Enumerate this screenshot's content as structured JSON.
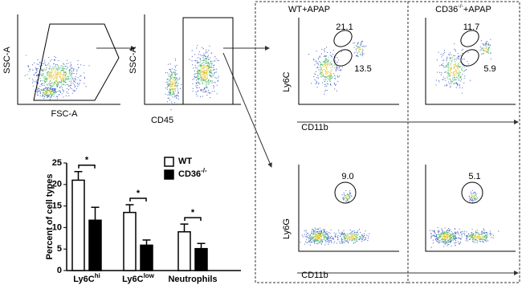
{
  "panels": {
    "gating": [
      {
        "y_label": "SSC-A",
        "x_label": "FSC-A"
      },
      {
        "y_label": "SSC-A",
        "x_label": "CD45"
      }
    ],
    "groups": [
      {
        "label": "WT+APAP"
      },
      {
        "label": "CD36",
        "sup": "-/-",
        "suffix": "+APAP"
      }
    ],
    "rows": [
      {
        "y_label": "Ly6C",
        "x_label": "CD11b",
        "gates": [
          [
            "21.1",
            "13.5"
          ],
          [
            "11.7",
            "5.9"
          ]
        ]
      },
      {
        "y_label": "Ly6G",
        "x_label": "CD11b",
        "gates": [
          [
            "9.0"
          ],
          [
            "5.1"
          ]
        ]
      }
    ]
  },
  "chart_data": {
    "type": "bar",
    "y_label": "Percent of cell types",
    "categories": [
      "Ly6C",
      "Ly6C",
      "Neutrophils"
    ],
    "category_sups": [
      "hi",
      "low",
      null
    ],
    "series": [
      {
        "name": "WT",
        "color": "#ffffff",
        "values": [
          21,
          13.5,
          9
        ],
        "errors": [
          2,
          1.8,
          1.8
        ]
      },
      {
        "name": "CD36",
        "name_sup": "-/-",
        "color": "#000000",
        "values": [
          11.7,
          5.9,
          5.1
        ],
        "errors": [
          3,
          1.2,
          1.2
        ]
      }
    ],
    "significance": [
      "*",
      "*",
      "*"
    ],
    "ylim": [
      0,
      25
    ],
    "yticks": [
      0,
      5,
      10,
      15,
      20,
      25
    ],
    "legend": "top-right"
  }
}
